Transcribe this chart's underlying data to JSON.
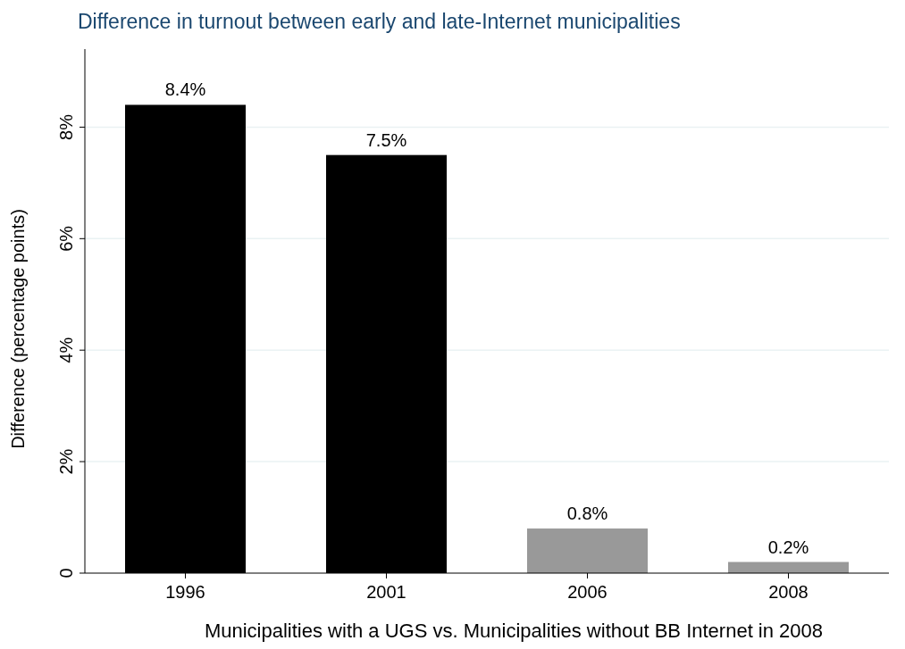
{
  "chart_data": {
    "type": "bar",
    "title": "Difference in turnout between early and late-Internet municipalities",
    "xlabel": "Municipalities with a UGS vs. Municipalities without BB Internet in 2008",
    "ylabel": "Difference (percentage points)",
    "categories": [
      "1996",
      "2001",
      "2006",
      "2008"
    ],
    "values": [
      8.4,
      7.5,
      0.8,
      0.2
    ],
    "colors": [
      "#000000",
      "#000000",
      "#999999",
      "#999999"
    ],
    "value_labels": [
      "8.4%",
      "7.5%",
      "0.8%",
      "0.2%"
    ],
    "ylim": [
      0,
      9.4
    ],
    "yticks": [
      {
        "value": 0,
        "label": "0"
      },
      {
        "value": 2,
        "label": "2%"
      },
      {
        "value": 4,
        "label": "4%"
      },
      {
        "value": 6,
        "label": "6%"
      },
      {
        "value": 8,
        "label": "8%"
      }
    ],
    "grid": "y"
  }
}
